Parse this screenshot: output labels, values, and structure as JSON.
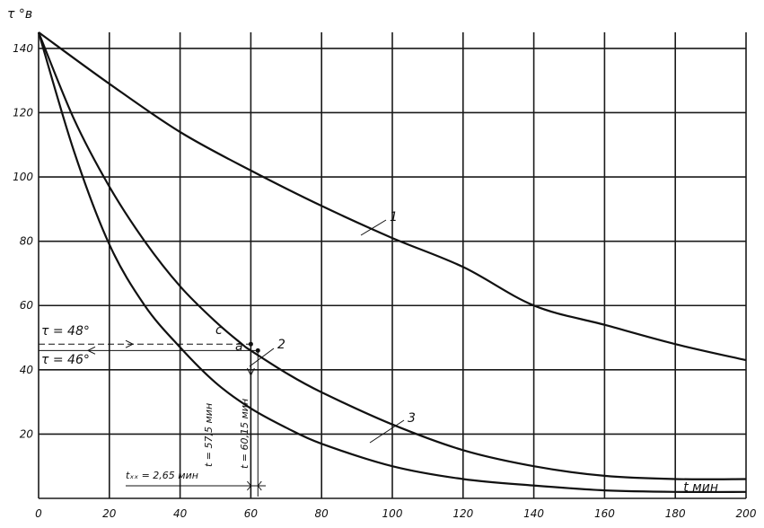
{
  "chart_data": {
    "type": "line",
    "ylabel": "τ °в",
    "xlabel": "t мин",
    "xlim": [
      0,
      200
    ],
    "ylim": [
      0,
      145
    ],
    "x_ticks": [
      0,
      20,
      40,
      60,
      80,
      100,
      120,
      140,
      160,
      180,
      200
    ],
    "y_ticks": [
      20,
      40,
      60,
      80,
      100,
      120,
      140
    ],
    "grid": true,
    "series": [
      {
        "name": "1",
        "x": [
          0,
          20,
          40,
          60,
          80,
          100,
          120,
          140,
          160,
          180,
          200
        ],
        "y": [
          145,
          129,
          114,
          102,
          91,
          81,
          72,
          60,
          54,
          48,
          43
        ]
      },
      {
        "name": "2",
        "x": [
          0,
          10,
          20,
          30,
          40,
          50,
          57.5,
          60,
          70,
          80,
          100,
          120,
          140,
          160,
          180,
          200
        ],
        "y": [
          145,
          118,
          97,
          80,
          66,
          55,
          48,
          46,
          39,
          33,
          23,
          15,
          10,
          7,
          6,
          6
        ]
      },
      {
        "name": "3",
        "x": [
          0,
          10,
          20,
          30,
          40,
          50,
          60,
          70,
          80,
          100,
          120,
          140,
          160,
          180,
          200
        ],
        "y": [
          145,
          108,
          79,
          60,
          47,
          36,
          28,
          22,
          17,
          10,
          6,
          4,
          2.5,
          2,
          2
        ]
      }
    ],
    "markers": [
      {
        "label": "c",
        "x": 60,
        "y": 48
      },
      {
        "label": "a",
        "x": 62,
        "y": 46
      }
    ],
    "annotations": {
      "tau_high": "τ = 48°",
      "tau_low": "τ = 46°",
      "t_left": "t = 57,5 мин",
      "t_right": "t = 60,15 мин",
      "t_xx": "tₓₓ = 2,65 мин"
    }
  }
}
